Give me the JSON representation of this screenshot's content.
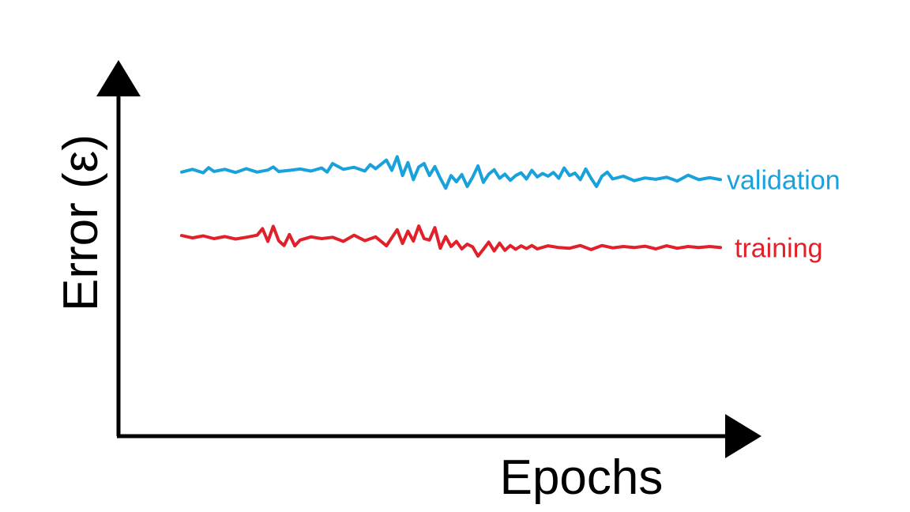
{
  "chart_data": {
    "type": "line",
    "xlabel": "Epochs",
    "ylabel": "Error (ε)",
    "grid": false,
    "legend": "inline labels at right end of each line",
    "xlim": [
      0,
      100
    ],
    "ylim": [
      0,
      100
    ],
    "series": [
      {
        "name": "validation",
        "color": "#19a1dc",
        "x": [
          0,
          2,
          4,
          5,
          6,
          8,
          10,
          12,
          14,
          16,
          17,
          18,
          20,
          22,
          24,
          26,
          27,
          28,
          30,
          32,
          34,
          35,
          36,
          38,
          39,
          40,
          41,
          42,
          43,
          44,
          45,
          46,
          47,
          48,
          49,
          50,
          51,
          52,
          53,
          54,
          55,
          56,
          57,
          58,
          59,
          60,
          61,
          62,
          63,
          64,
          65,
          66,
          67,
          68,
          69,
          70,
          71,
          72,
          73,
          74,
          75,
          76,
          77,
          78,
          79,
          80,
          82,
          84,
          86,
          88,
          90,
          92,
          94,
          96,
          98,
          100
        ],
        "y": [
          77.0,
          77.8,
          76.8,
          78.3,
          77.2,
          77.8,
          76.9,
          78.0,
          77.0,
          77.6,
          78.5,
          77.2,
          77.5,
          77.9,
          77.3,
          78.2,
          77.0,
          79.5,
          77.8,
          78.4,
          77.3,
          79.2,
          78.0,
          80.5,
          77.5,
          81.5,
          76.0,
          79.8,
          74.8,
          78.5,
          79.5,
          76.0,
          78.6,
          75.2,
          72.3,
          76.0,
          74.2,
          76.3,
          72.8,
          75.5,
          78.8,
          74.0,
          76.4,
          77.7,
          75.2,
          76.4,
          74.6,
          76.0,
          76.8,
          75.0,
          77.5,
          75.6,
          76.6,
          75.8,
          76.9,
          75.2,
          78.2,
          76.0,
          76.7,
          74.8,
          77.9,
          75.2,
          72.8,
          75.8,
          77.0,
          75.0,
          75.8,
          74.5,
          75.3,
          74.9,
          75.5,
          74.4,
          76.1,
          74.8,
          75.4,
          74.8
        ]
      },
      {
        "name": "training",
        "color": "#e1202a",
        "x": [
          0,
          2,
          4,
          6,
          8,
          10,
          12,
          14,
          15,
          16,
          17,
          18,
          19,
          20,
          21,
          22,
          24,
          26,
          28,
          30,
          32,
          34,
          36,
          38,
          40,
          41,
          42,
          43,
          44,
          45,
          46,
          47,
          48,
          49,
          50,
          51,
          52,
          53,
          54,
          55,
          56,
          57,
          58,
          59,
          60,
          61,
          62,
          63,
          64,
          65,
          66,
          68,
          70,
          72,
          74,
          76,
          78,
          80,
          82,
          84,
          86,
          88,
          90,
          92,
          94,
          96,
          98,
          100
        ],
        "y": [
          58.5,
          57.8,
          58.4,
          57.6,
          58.2,
          57.5,
          58.0,
          58.6,
          60.5,
          56.8,
          61.2,
          57.0,
          55.6,
          58.8,
          55.5,
          57.2,
          58.1,
          57.6,
          58.0,
          56.8,
          58.6,
          57.0,
          58.1,
          55.5,
          60.2,
          56.2,
          59.8,
          56.9,
          61.3,
          57.6,
          57.2,
          60.8,
          54.8,
          58.2,
          55.3,
          56.8,
          54.6,
          56.0,
          55.2,
          52.5,
          54.5,
          56.6,
          54.0,
          56.3,
          54.2,
          55.6,
          54.5,
          55.5,
          54.7,
          55.6,
          54.6,
          55.5,
          55.0,
          54.8,
          55.6,
          54.4,
          55.6,
          54.9,
          55.3,
          55.0,
          55.4,
          54.6,
          55.5,
          54.8,
          55.3,
          55.0,
          55.3,
          55.0
        ]
      }
    ]
  }
}
